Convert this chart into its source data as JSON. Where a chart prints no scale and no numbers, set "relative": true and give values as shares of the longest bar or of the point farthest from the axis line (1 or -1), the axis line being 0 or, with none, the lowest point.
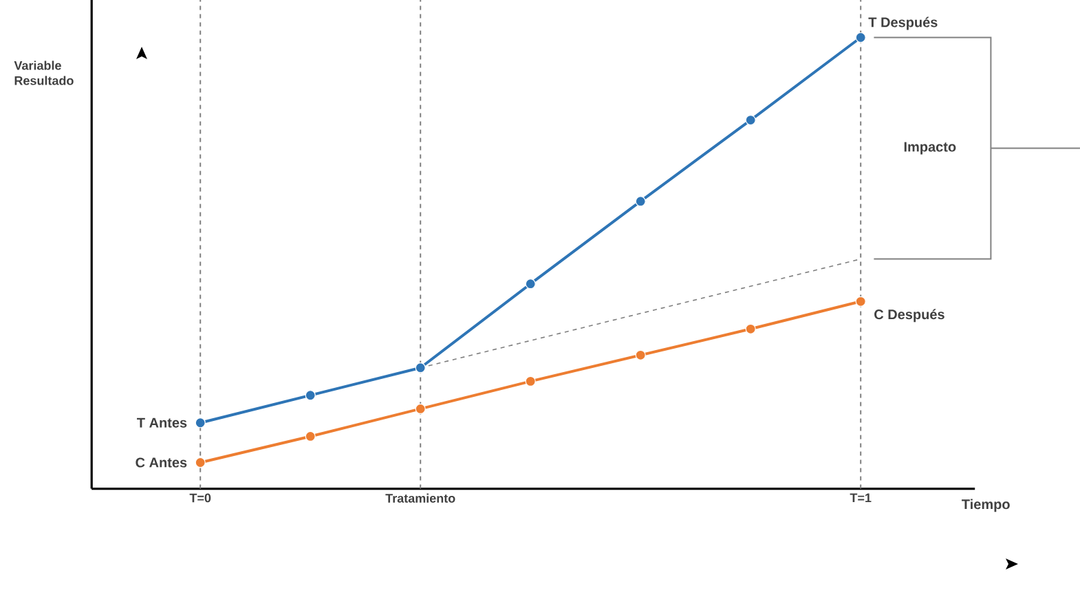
{
  "chart_data": {
    "type": "line",
    "relative": true,
    "xlabel": "Tiempo",
    "ylabel": "Variable Resultado",
    "categories": [
      "T=0",
      null,
      "Tratamiento",
      null,
      null,
      null,
      "T=1"
    ],
    "series": [
      {
        "color": "#2e75b6",
        "values": [
          0.146,
          0.207,
          0.268,
          0.454,
          0.637,
          0.817,
          1
        ]
      },
      {
        "color": "#ed7d31",
        "values": [
          0.058,
          0.116,
          0.177,
          0.238,
          0.296,
          0.354,
          0.415
        ]
      },
      {
        "color": "#7f7f7f",
        "line_style": "dashed",
        "marker": "none",
        "values": [
          null,
          null,
          0.268,
          null,
          null,
          null,
          0.509
        ]
      }
    ],
    "marker": "circle",
    "grid": false,
    "ref_lines": [
      {
        "axis": "x",
        "value": "T=0",
        "color": "#7f7f7f",
        "line_style": "dashed"
      },
      {
        "axis": "x",
        "value": "Tratamiento",
        "color": "#7f7f7f",
        "line_style": "dashed"
      },
      {
        "axis": "x",
        "value": "T=1",
        "color": "#7f7f7f",
        "line_style": "dashed"
      }
    ],
    "annotations": [
      {
        "text": "T Antes",
        "x": "T=0",
        "y": 0.146
      },
      {
        "text": "C Antes",
        "x": "T=0",
        "y": 0.058
      },
      {
        "text": "T Después",
        "x": "T=1",
        "y": 1
      },
      {
        "text": "C Después",
        "x": "T=1",
        "y": 0.415
      },
      "Impacto"
    ]
  }
}
